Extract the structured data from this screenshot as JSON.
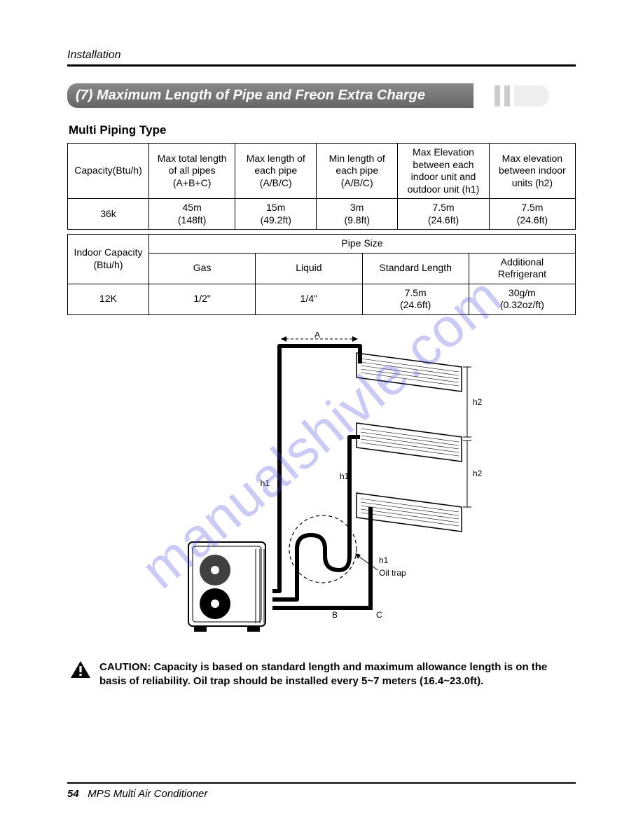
{
  "header": {
    "section": "Installation"
  },
  "title": "(7) Maximum Length of Pipe and Freon Extra Charge",
  "subhead": "Multi Piping Type",
  "table1": {
    "headers": [
      "Capacity(Btu/h)",
      "Max total length\nof all pipes\n(A+B+C)",
      "Max length of\neach pipe\n(A/B/C)",
      "Min length of\neach pipe\n(A/B/C)",
      "Max Elevation\nbetween each\nindoor unit and\noutdoor unit (h1)",
      "Max elevation\nbetween indoor\nunits (h2)"
    ],
    "row": [
      "36k",
      "45m\n(148ft)",
      "15m\n(49.2ft)",
      "3m\n(9.8ft)",
      "7.5m\n(24.6ft)",
      "7.5m\n(24.6ft)"
    ]
  },
  "table2": {
    "left_header": "Indoor Capacity\n(Btu/h)",
    "span_header": "Pipe Size",
    "sub_headers": [
      "Gas",
      "Liquid",
      "Standard Length",
      "Additional\nRefrigerant"
    ],
    "row": [
      "12K",
      "1/2\"",
      "1/4\"",
      "7.5m\n(24.6ft)",
      "30g/m\n(0.32oz/ft)"
    ]
  },
  "diagram": {
    "labels": {
      "A": "A",
      "B": "B",
      "C": "C",
      "h1": "h1",
      "h2": "h2",
      "oiltrap": "Oil trap"
    },
    "colors": {
      "stroke": "#000000",
      "fill_unit": "#ffffff",
      "hatch": "#555555",
      "dash": "#000000"
    },
    "font_size": 12
  },
  "caution": "CAUTION: Capacity is based on standard length and maximum allowance length is on the basis of reliability. Oil trap should be installed every 5~7 meters (16.4~23.0ft).",
  "footer": {
    "page": "54",
    "doc": "MPS Multi Air Conditioner"
  },
  "watermark": "manualshivle.com"
}
